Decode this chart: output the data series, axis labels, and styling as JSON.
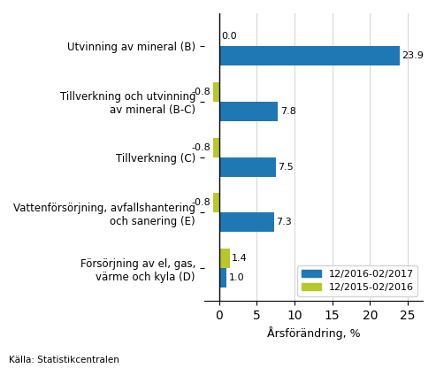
{
  "categories": [
    "Utvinning av mineral (B)",
    "Tillverkning och utvinning\nav mineral (B-C)",
    "Tillverkning (C)",
    "Vattenförsörjning, avfallshantering\noch sanering (E)",
    "Försörjning av el, gas,\nvärme och kyla (D)"
  ],
  "values_2017": [
    23.9,
    7.8,
    7.5,
    7.3,
    1.0
  ],
  "values_2016": [
    0.0,
    -0.8,
    -0.8,
    -0.8,
    1.4
  ],
  "color_2017": "#1F78B4",
  "color_2016": "#B8C82A",
  "xlabel": "Årsförändring, %",
  "legend_2017": "12/2016-02/2017",
  "legend_2016": "12/2015-02/2016",
  "source": "Källa: Statistikcentralen",
  "xlim": [
    -2,
    27
  ],
  "xticks": [
    0,
    5,
    10,
    15,
    20,
    25
  ]
}
